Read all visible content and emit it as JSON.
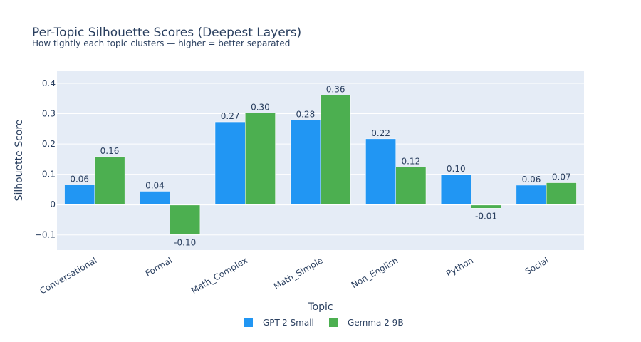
{
  "colors": {
    "series1": "#2196f3",
    "series2": "#4caf50",
    "plot_bg": "#e5ecf6",
    "grid": "#ffffff",
    "text": "#2a3f5f"
  },
  "chart_data": {
    "type": "bar",
    "title": "Per-Topic Silhouette Scores (Deepest Layers)",
    "subtitle": "How tightly each topic clusters — higher = better separated",
    "xlabel": "Topic",
    "ylabel": "Silhouette Score",
    "ylim": [
      -0.15,
      0.44
    ],
    "yticks": [
      -0.1,
      0,
      0.1,
      0.2,
      0.3,
      0.4
    ],
    "ytick_labels": [
      "−0.1",
      "0",
      "0.1",
      "0.2",
      "0.3",
      "0.4"
    ],
    "categories": [
      "Conversational",
      "Formal",
      "Math_Complex",
      "Math_Simple",
      "Non_English",
      "Python",
      "Social"
    ],
    "series": [
      {
        "name": "GPT-2 Small",
        "values": [
          0.065,
          0.044,
          0.273,
          0.279,
          0.217,
          0.099,
          0.064
        ],
        "labels": [
          "0.06",
          "0.04",
          "0.27",
          "0.28",
          "0.22",
          "0.10",
          "0.06"
        ]
      },
      {
        "name": "Gemma 2 9B",
        "values": [
          0.158,
          -0.099,
          0.302,
          0.361,
          0.124,
          -0.012,
          0.072
        ],
        "labels": [
          "0.16",
          "-0.10",
          "0.30",
          "0.36",
          "0.12",
          "-0.01",
          "0.07"
        ]
      }
    ],
    "legend_position": "bottom-center"
  }
}
